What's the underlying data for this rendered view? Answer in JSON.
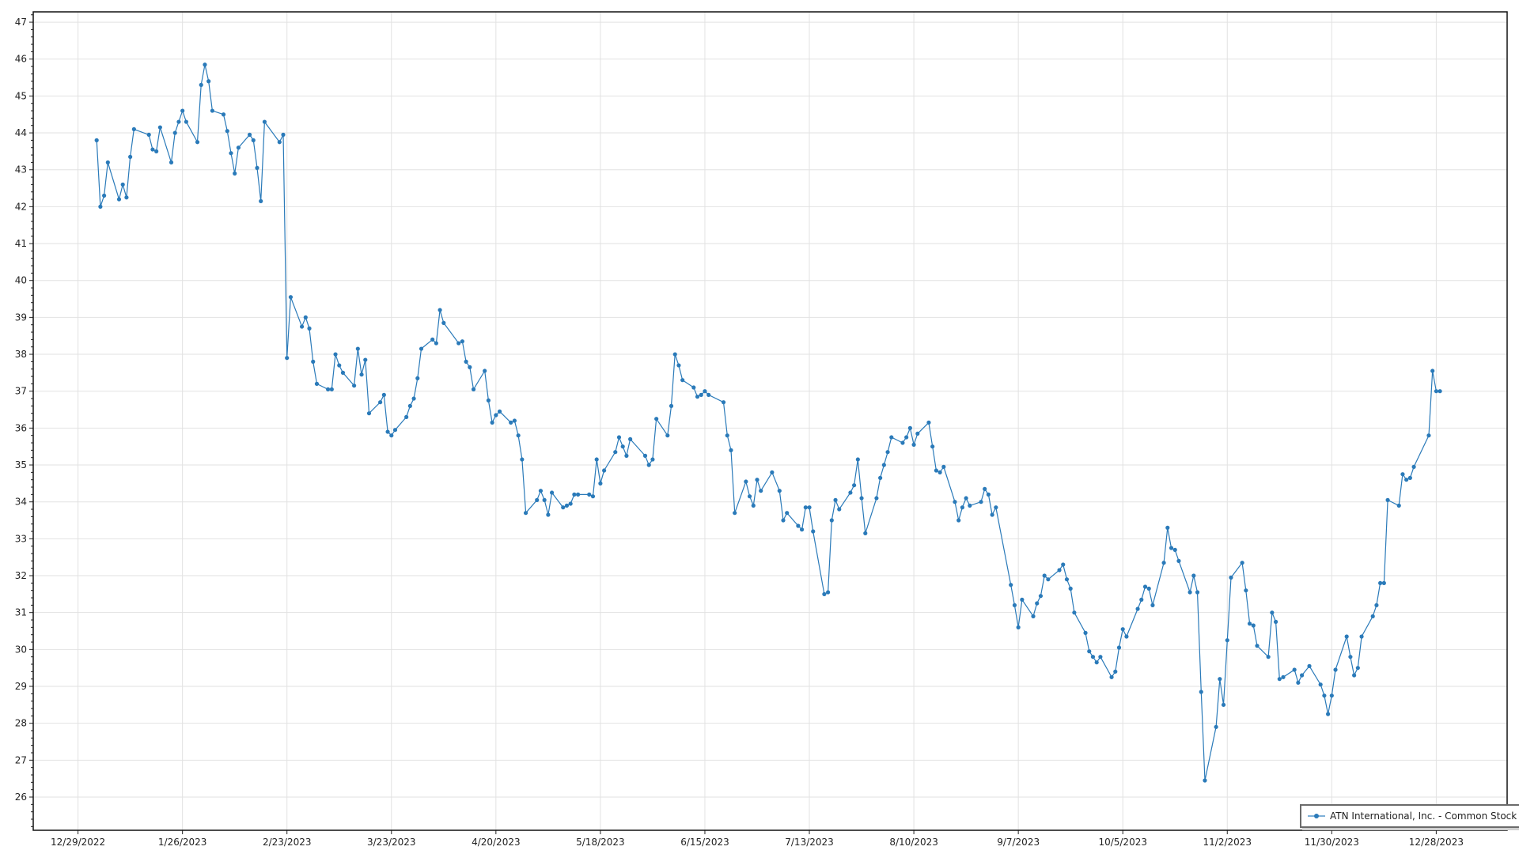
{
  "chart_data": {
    "type": "line",
    "title": "",
    "xlabel": "",
    "ylabel": "",
    "series_color": "#2a7ab9",
    "grid": true,
    "legend_placement": "bottom-right",
    "ylim": [
      25.1,
      47.28
    ],
    "xlim": [
      "2022-12-17",
      "2024-01-16"
    ],
    "y_ticks": [
      26,
      27,
      28,
      29,
      30,
      31,
      32,
      33,
      34,
      35,
      36,
      37,
      38,
      39,
      40,
      41,
      42,
      43,
      44,
      45,
      46,
      47
    ],
    "x_ticks": [
      {
        "date": "2022-12-29",
        "label": "12/29/2022"
      },
      {
        "date": "2023-01-26",
        "label": "1/26/2023"
      },
      {
        "date": "2023-02-23",
        "label": "2/23/2023"
      },
      {
        "date": "2023-03-23",
        "label": "3/23/2023"
      },
      {
        "date": "2023-04-20",
        "label": "4/20/2023"
      },
      {
        "date": "2023-05-18",
        "label": "5/18/2023"
      },
      {
        "date": "2023-06-15",
        "label": "6/15/2023"
      },
      {
        "date": "2023-07-13",
        "label": "7/13/2023"
      },
      {
        "date": "2023-08-10",
        "label": "8/10/2023"
      },
      {
        "date": "2023-09-07",
        "label": "9/7/2023"
      },
      {
        "date": "2023-10-05",
        "label": "10/5/2023"
      },
      {
        "date": "2023-11-02",
        "label": "11/2/2023"
      },
      {
        "date": "2023-11-30",
        "label": "11/30/2023"
      },
      {
        "date": "2023-12-28",
        "label": "12/28/2023"
      }
    ],
    "series": [
      {
        "name": "ATN International, Inc. - Common Stock",
        "points": [
          [
            "2023-01-03",
            43.8
          ],
          [
            "2023-01-04",
            42.0
          ],
          [
            "2023-01-05",
            42.3
          ],
          [
            "2023-01-06",
            43.2
          ],
          [
            "2023-01-09",
            42.2
          ],
          [
            "2023-01-10",
            42.6
          ],
          [
            "2023-01-11",
            42.25
          ],
          [
            "2023-01-12",
            43.35
          ],
          [
            "2023-01-13",
            44.1
          ],
          [
            "2023-01-17",
            43.95
          ],
          [
            "2023-01-18",
            43.55
          ],
          [
            "2023-01-19",
            43.5
          ],
          [
            "2023-01-20",
            44.15
          ],
          [
            "2023-01-23",
            43.2
          ],
          [
            "2023-01-24",
            44.0
          ],
          [
            "2023-01-25",
            44.3
          ],
          [
            "2023-01-26",
            44.6
          ],
          [
            "2023-01-27",
            44.3
          ],
          [
            "2023-01-30",
            43.75
          ],
          [
            "2023-01-31",
            45.3
          ],
          [
            "2023-02-01",
            45.85
          ],
          [
            "2023-02-02",
            45.4
          ],
          [
            "2023-02-03",
            44.6
          ],
          [
            "2023-02-06",
            44.5
          ],
          [
            "2023-02-07",
            44.05
          ],
          [
            "2023-02-08",
            43.45
          ],
          [
            "2023-02-09",
            42.9
          ],
          [
            "2023-02-10",
            43.6
          ],
          [
            "2023-02-13",
            43.95
          ],
          [
            "2023-02-14",
            43.8
          ],
          [
            "2023-02-15",
            43.05
          ],
          [
            "2023-02-16",
            42.15
          ],
          [
            "2023-02-17",
            44.3
          ],
          [
            "2023-02-21",
            43.75
          ],
          [
            "2023-02-22",
            43.95
          ],
          [
            "2023-02-23",
            37.9
          ],
          [
            "2023-02-24",
            39.55
          ],
          [
            "2023-02-27",
            38.75
          ],
          [
            "2023-02-28",
            39.0
          ],
          [
            "2023-03-01",
            38.7
          ],
          [
            "2023-03-02",
            37.8
          ],
          [
            "2023-03-03",
            37.2
          ],
          [
            "2023-03-06",
            37.05
          ],
          [
            "2023-03-07",
            37.05
          ],
          [
            "2023-03-08",
            38.0
          ],
          [
            "2023-03-09",
            37.7
          ],
          [
            "2023-03-10",
            37.5
          ],
          [
            "2023-03-13",
            37.15
          ],
          [
            "2023-03-14",
            38.15
          ],
          [
            "2023-03-15",
            37.45
          ],
          [
            "2023-03-16",
            37.85
          ],
          [
            "2023-03-17",
            36.4
          ],
          [
            "2023-03-20",
            36.7
          ],
          [
            "2023-03-21",
            36.9
          ],
          [
            "2023-03-22",
            35.9
          ],
          [
            "2023-03-23",
            35.8
          ],
          [
            "2023-03-24",
            35.95
          ],
          [
            "2023-03-27",
            36.3
          ],
          [
            "2023-03-28",
            36.6
          ],
          [
            "2023-03-29",
            36.8
          ],
          [
            "2023-03-30",
            37.35
          ],
          [
            "2023-03-31",
            38.15
          ],
          [
            "2023-04-03",
            38.4
          ],
          [
            "2023-04-04",
            38.3
          ],
          [
            "2023-04-05",
            39.2
          ],
          [
            "2023-04-06",
            38.85
          ],
          [
            "2023-04-10",
            38.3
          ],
          [
            "2023-04-11",
            38.35
          ],
          [
            "2023-04-12",
            37.8
          ],
          [
            "2023-04-13",
            37.65
          ],
          [
            "2023-04-14",
            37.05
          ],
          [
            "2023-04-17",
            37.55
          ],
          [
            "2023-04-18",
            36.75
          ],
          [
            "2023-04-19",
            36.15
          ],
          [
            "2023-04-20",
            36.35
          ],
          [
            "2023-04-21",
            36.45
          ],
          [
            "2023-04-24",
            36.15
          ],
          [
            "2023-04-25",
            36.2
          ],
          [
            "2023-04-26",
            35.8
          ],
          [
            "2023-04-27",
            35.15
          ],
          [
            "2023-04-28",
            33.7
          ],
          [
            "2023-05-01",
            34.05
          ],
          [
            "2023-05-02",
            34.3
          ],
          [
            "2023-05-03",
            34.05
          ],
          [
            "2023-05-04",
            33.65
          ],
          [
            "2023-05-05",
            34.25
          ],
          [
            "2023-05-08",
            33.85
          ],
          [
            "2023-05-09",
            33.9
          ],
          [
            "2023-05-10",
            33.95
          ],
          [
            "2023-05-11",
            34.2
          ],
          [
            "2023-05-12",
            34.2
          ],
          [
            "2023-05-15",
            34.2
          ],
          [
            "2023-05-16",
            34.15
          ],
          [
            "2023-05-17",
            35.15
          ],
          [
            "2023-05-18",
            34.5
          ],
          [
            "2023-05-19",
            34.85
          ],
          [
            "2023-05-22",
            35.35
          ],
          [
            "2023-05-23",
            35.75
          ],
          [
            "2023-05-24",
            35.5
          ],
          [
            "2023-05-25",
            35.25
          ],
          [
            "2023-05-26",
            35.7
          ],
          [
            "2023-05-30",
            35.25
          ],
          [
            "2023-05-31",
            35.0
          ],
          [
            "2023-06-01",
            35.15
          ],
          [
            "2023-06-02",
            36.25
          ],
          [
            "2023-06-05",
            35.8
          ],
          [
            "2023-06-06",
            36.6
          ],
          [
            "2023-06-07",
            38.0
          ],
          [
            "2023-06-08",
            37.7
          ],
          [
            "2023-06-09",
            37.3
          ],
          [
            "2023-06-12",
            37.1
          ],
          [
            "2023-06-13",
            36.85
          ],
          [
            "2023-06-14",
            36.9
          ],
          [
            "2023-06-15",
            37.0
          ],
          [
            "2023-06-16",
            36.9
          ],
          [
            "2023-06-20",
            36.7
          ],
          [
            "2023-06-21",
            35.8
          ],
          [
            "2023-06-22",
            35.4
          ],
          [
            "2023-06-23",
            33.7
          ],
          [
            "2023-06-26",
            34.55
          ],
          [
            "2023-06-27",
            34.15
          ],
          [
            "2023-06-28",
            33.9
          ],
          [
            "2023-06-29",
            34.6
          ],
          [
            "2023-06-30",
            34.3
          ],
          [
            "2023-07-03",
            34.8
          ],
          [
            "2023-07-05",
            34.3
          ],
          [
            "2023-07-06",
            33.5
          ],
          [
            "2023-07-07",
            33.7
          ],
          [
            "2023-07-10",
            33.35
          ],
          [
            "2023-07-11",
            33.25
          ],
          [
            "2023-07-12",
            33.85
          ],
          [
            "2023-07-13",
            33.85
          ],
          [
            "2023-07-14",
            33.2
          ],
          [
            "2023-07-17",
            31.5
          ],
          [
            "2023-07-18",
            31.55
          ],
          [
            "2023-07-19",
            33.5
          ],
          [
            "2023-07-20",
            34.05
          ],
          [
            "2023-07-21",
            33.8
          ],
          [
            "2023-07-24",
            34.25
          ],
          [
            "2023-07-25",
            34.45
          ],
          [
            "2023-07-26",
            35.15
          ],
          [
            "2023-07-27",
            34.1
          ],
          [
            "2023-07-28",
            33.15
          ],
          [
            "2023-07-31",
            34.1
          ],
          [
            "2023-08-01",
            34.65
          ],
          [
            "2023-08-02",
            35.0
          ],
          [
            "2023-08-03",
            35.35
          ],
          [
            "2023-08-04",
            35.75
          ],
          [
            "2023-08-07",
            35.6
          ],
          [
            "2023-08-08",
            35.75
          ],
          [
            "2023-08-09",
            36.0
          ],
          [
            "2023-08-10",
            35.55
          ],
          [
            "2023-08-11",
            35.85
          ],
          [
            "2023-08-14",
            36.15
          ],
          [
            "2023-08-15",
            35.5
          ],
          [
            "2023-08-16",
            34.85
          ],
          [
            "2023-08-17",
            34.8
          ],
          [
            "2023-08-18",
            34.95
          ],
          [
            "2023-08-21",
            34.0
          ],
          [
            "2023-08-22",
            33.5
          ],
          [
            "2023-08-23",
            33.85
          ],
          [
            "2023-08-24",
            34.1
          ],
          [
            "2023-08-25",
            33.9
          ],
          [
            "2023-08-28",
            34.0
          ],
          [
            "2023-08-29",
            34.35
          ],
          [
            "2023-08-30",
            34.2
          ],
          [
            "2023-08-31",
            33.65
          ],
          [
            "2023-09-01",
            33.85
          ],
          [
            "2023-09-05",
            31.75
          ],
          [
            "2023-09-06",
            31.2
          ],
          [
            "2023-09-07",
            30.6
          ],
          [
            "2023-09-08",
            31.35
          ],
          [
            "2023-09-11",
            30.9
          ],
          [
            "2023-09-12",
            31.25
          ],
          [
            "2023-09-13",
            31.45
          ],
          [
            "2023-09-14",
            32.0
          ],
          [
            "2023-09-15",
            31.9
          ],
          [
            "2023-09-18",
            32.15
          ],
          [
            "2023-09-19",
            32.3
          ],
          [
            "2023-09-20",
            31.9
          ],
          [
            "2023-09-21",
            31.65
          ],
          [
            "2023-09-22",
            31.0
          ],
          [
            "2023-09-25",
            30.45
          ],
          [
            "2023-09-26",
            29.95
          ],
          [
            "2023-09-27",
            29.8
          ],
          [
            "2023-09-28",
            29.65
          ],
          [
            "2023-09-29",
            29.8
          ],
          [
            "2023-10-02",
            29.25
          ],
          [
            "2023-10-03",
            29.4
          ],
          [
            "2023-10-04",
            30.05
          ],
          [
            "2023-10-05",
            30.55
          ],
          [
            "2023-10-06",
            30.35
          ],
          [
            "2023-10-09",
            31.1
          ],
          [
            "2023-10-10",
            31.35
          ],
          [
            "2023-10-11",
            31.7
          ],
          [
            "2023-10-12",
            31.65
          ],
          [
            "2023-10-13",
            31.2
          ],
          [
            "2023-10-16",
            32.35
          ],
          [
            "2023-10-17",
            33.3
          ],
          [
            "2023-10-18",
            32.75
          ],
          [
            "2023-10-19",
            32.7
          ],
          [
            "2023-10-20",
            32.4
          ],
          [
            "2023-10-23",
            31.55
          ],
          [
            "2023-10-24",
            32.0
          ],
          [
            "2023-10-25",
            31.55
          ],
          [
            "2023-10-26",
            28.85
          ],
          [
            "2023-10-27",
            26.45
          ],
          [
            "2023-10-30",
            27.9
          ],
          [
            "2023-10-31",
            29.2
          ],
          [
            "2023-11-01",
            28.5
          ],
          [
            "2023-11-02",
            30.25
          ],
          [
            "2023-11-03",
            31.95
          ],
          [
            "2023-11-06",
            32.35
          ],
          [
            "2023-11-07",
            31.6
          ],
          [
            "2023-11-08",
            30.7
          ],
          [
            "2023-11-09",
            30.65
          ],
          [
            "2023-11-10",
            30.1
          ],
          [
            "2023-11-13",
            29.8
          ],
          [
            "2023-11-14",
            31.0
          ],
          [
            "2023-11-15",
            30.75
          ],
          [
            "2023-11-16",
            29.2
          ],
          [
            "2023-11-17",
            29.25
          ],
          [
            "2023-11-20",
            29.45
          ],
          [
            "2023-11-21",
            29.1
          ],
          [
            "2023-11-22",
            29.3
          ],
          [
            "2023-11-24",
            29.55
          ],
          [
            "2023-11-27",
            29.05
          ],
          [
            "2023-11-28",
            28.75
          ],
          [
            "2023-11-29",
            28.25
          ],
          [
            "2023-11-30",
            28.75
          ],
          [
            "2023-12-01",
            29.45
          ],
          [
            "2023-12-04",
            30.35
          ],
          [
            "2023-12-05",
            29.8
          ],
          [
            "2023-12-06",
            29.3
          ],
          [
            "2023-12-07",
            29.5
          ],
          [
            "2023-12-08",
            30.35
          ],
          [
            "2023-12-11",
            30.9
          ],
          [
            "2023-12-12",
            31.2
          ],
          [
            "2023-12-13",
            31.8
          ],
          [
            "2023-12-14",
            31.8
          ],
          [
            "2023-12-15",
            34.05
          ],
          [
            "2023-12-18",
            33.9
          ],
          [
            "2023-12-19",
            34.75
          ],
          [
            "2023-12-20",
            34.6
          ],
          [
            "2023-12-21",
            34.65
          ],
          [
            "2023-12-22",
            34.95
          ],
          [
            "2023-12-26",
            35.8
          ],
          [
            "2023-12-27",
            37.55
          ],
          [
            "2023-12-28",
            37.0
          ],
          [
            "2023-12-29",
            37.0
          ]
        ]
      }
    ]
  }
}
